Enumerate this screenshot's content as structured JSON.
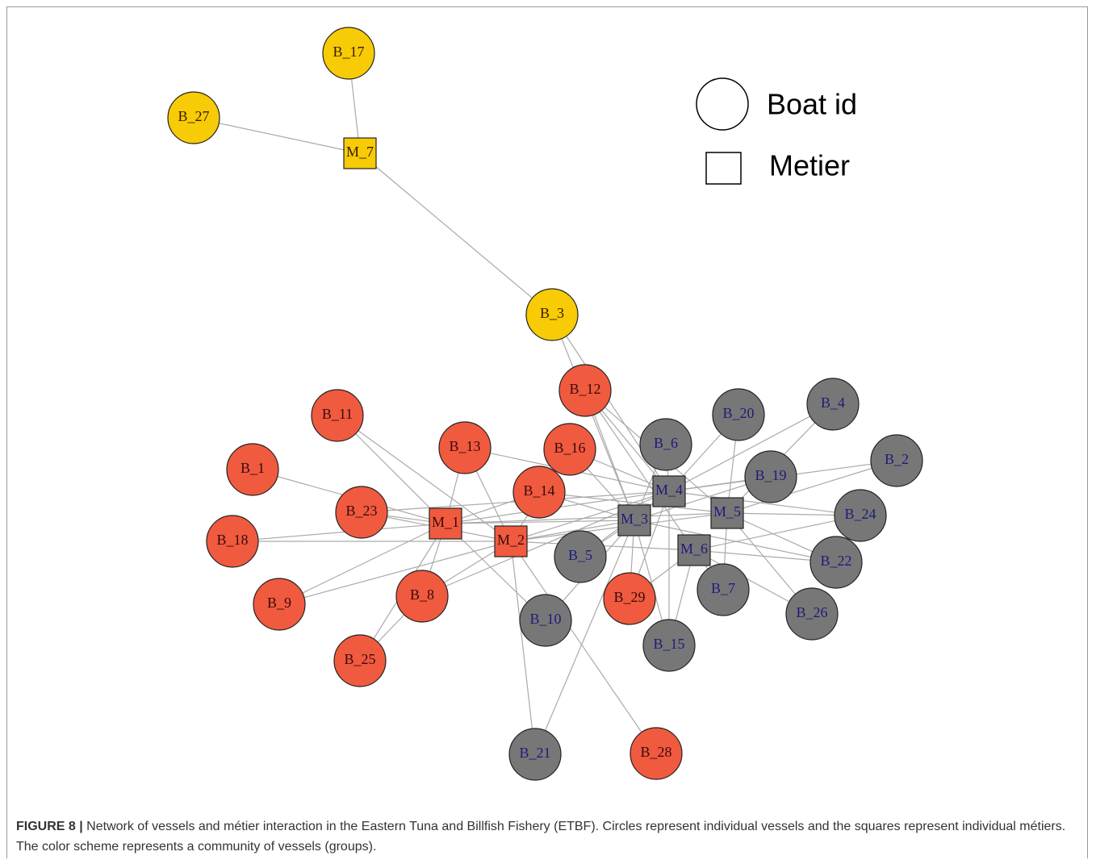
{
  "nodes": [
    {
      "label": "B_17"
    },
    {
      "label": "B_27"
    },
    {
      "label": "M_7"
    },
    {
      "label": "B_3"
    },
    {
      "label": "B_12"
    },
    {
      "label": "B_11"
    },
    {
      "label": "B_13"
    },
    {
      "label": "B_16"
    },
    {
      "label": "B_1"
    },
    {
      "label": "B_14"
    },
    {
      "label": "B_23"
    },
    {
      "label": "M_1"
    },
    {
      "label": "M_2"
    },
    {
      "label": "B_18"
    },
    {
      "label": "B_9"
    },
    {
      "label": "B_8"
    },
    {
      "label": "B_25"
    },
    {
      "label": "B_29"
    },
    {
      "label": "B_28"
    },
    {
      "label": "B_6"
    },
    {
      "label": "B_20"
    },
    {
      "label": "B_4"
    },
    {
      "label": "B_2"
    },
    {
      "label": "B_19"
    },
    {
      "label": "M_4"
    },
    {
      "label": "M_3"
    },
    {
      "label": "M_5"
    },
    {
      "label": "M_6"
    },
    {
      "label": "B_24"
    },
    {
      "label": "B_22"
    },
    {
      "label": "B_5"
    },
    {
      "label": "B_7"
    },
    {
      "label": "B_26"
    },
    {
      "label": "B_10"
    },
    {
      "label": "B_15"
    },
    {
      "label": "B_21"
    }
  ],
  "legend": {
    "boat": "Boat id",
    "metier": "Metier"
  },
  "caption": {
    "label": "FIGURE 8 |",
    "text": "Network of vessels and métier interaction in the Eastern Tuna and Billfish Fishery (ETBF). Circles represent individual vessels and the squares represent individual métiers. The color scheme represents a community of vessels (groups)."
  }
}
